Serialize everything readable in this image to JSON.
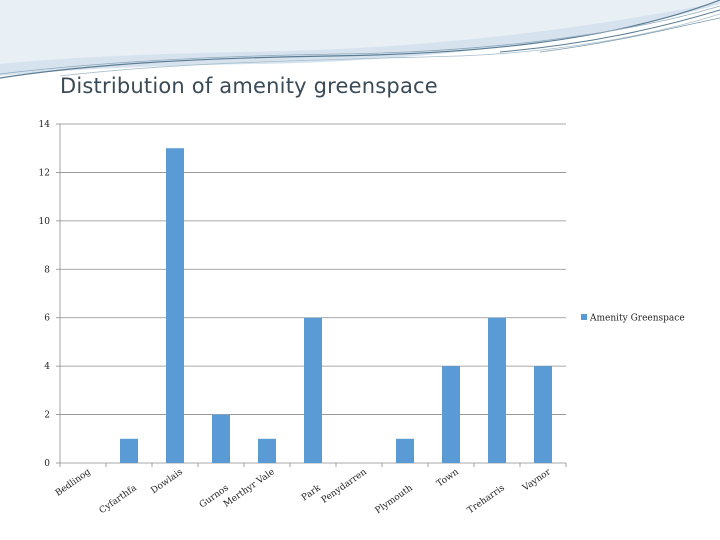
{
  "slide": {
    "title": "Distribution of amenity greenspace"
  },
  "colors": {
    "bar": "#5b9bd5",
    "grid": "#8c8c8c",
    "title": "#3a4a56",
    "wave_dark": "#5b7c93",
    "wave_light": "#b8cede"
  },
  "chart_data": {
    "type": "bar",
    "categories": [
      "Bedlinog",
      "Cyfarthfa",
      "Dowlais",
      "Gurnos",
      "Merthyr Vale",
      "Park",
      "Penydarren",
      "Plymouth",
      "Town",
      "Treharris",
      "Vaynor"
    ],
    "series": [
      {
        "name": "Amenity Greenspace",
        "values": [
          0,
          1,
          13,
          2,
          1,
          6,
          0,
          1,
          4,
          6,
          4
        ]
      }
    ],
    "ylim": [
      0,
      14
    ],
    "yticks": [
      0,
      2,
      4,
      6,
      8,
      10,
      12,
      14
    ],
    "grid": true,
    "legend_position": "right"
  }
}
